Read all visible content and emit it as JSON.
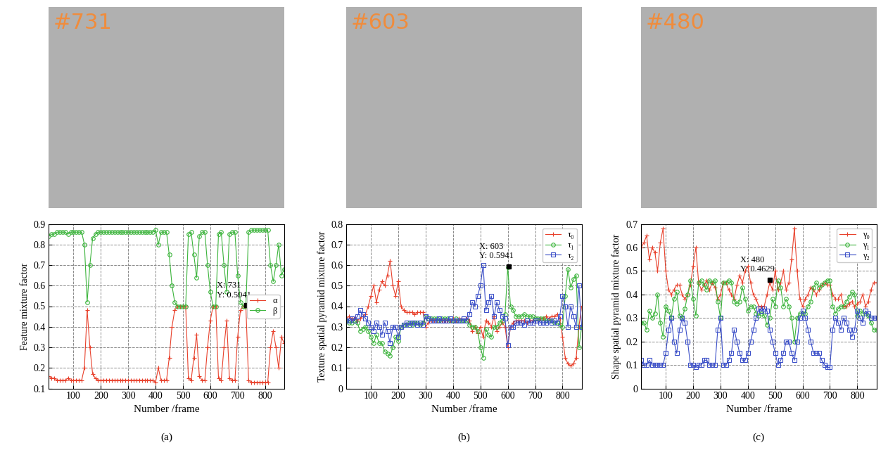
{
  "frames": [
    {
      "label": "#731"
    },
    {
      "label": "#603"
    },
    {
      "label": "#480"
    }
  ],
  "chart_data": [
    {
      "type": "line",
      "x_label": "Number /frame",
      "y_label": "Feature mixture factor",
      "caption": "(a)",
      "xlim": [
        10,
        870
      ],
      "xticks": [
        100,
        200,
        300,
        400,
        500,
        600,
        700,
        800
      ],
      "ylim": [
        0.1,
        0.9
      ],
      "yticks": [
        0.1,
        0.2,
        0.3,
        0.4,
        0.5,
        0.6,
        0.7,
        0.8,
        0.9
      ],
      "grid": true,
      "legend": "center right",
      "annotations": [
        {
          "x": 731,
          "y": 0.5041,
          "text": "X: 731\nY: 0.5041"
        }
      ],
      "x": [
        10,
        20,
        30,
        40,
        50,
        60,
        70,
        80,
        90,
        100,
        110,
        120,
        130,
        140,
        150,
        160,
        170,
        180,
        190,
        200,
        210,
        220,
        230,
        240,
        250,
        260,
        270,
        280,
        290,
        300,
        310,
        320,
        330,
        340,
        350,
        360,
        370,
        380,
        390,
        400,
        410,
        420,
        430,
        440,
        450,
        460,
        470,
        480,
        490,
        500,
        510,
        520,
        530,
        540,
        550,
        560,
        570,
        580,
        590,
        600,
        610,
        620,
        630,
        640,
        650,
        660,
        670,
        680,
        690,
        700,
        710,
        720,
        730,
        740,
        750,
        760,
        770,
        780,
        790,
        800,
        810,
        820,
        830,
        840,
        850,
        860,
        870
      ],
      "series": [
        {
          "name": "α",
          "color": "#e8412c",
          "marker": "plus",
          "line_style": "solid",
          "values": [
            0.16,
            0.15,
            0.15,
            0.14,
            0.14,
            0.14,
            0.14,
            0.15,
            0.14,
            0.14,
            0.14,
            0.14,
            0.14,
            0.2,
            0.48,
            0.3,
            0.17,
            0.15,
            0.14,
            0.14,
            0.14,
            0.14,
            0.14,
            0.14,
            0.14,
            0.14,
            0.14,
            0.14,
            0.14,
            0.14,
            0.14,
            0.14,
            0.14,
            0.14,
            0.14,
            0.14,
            0.14,
            0.14,
            0.14,
            0.13,
            0.2,
            0.14,
            0.14,
            0.14,
            0.25,
            0.4,
            0.48,
            0.5,
            0.5,
            0.5,
            0.5,
            0.15,
            0.14,
            0.25,
            0.36,
            0.16,
            0.14,
            0.14,
            0.3,
            0.43,
            0.5,
            0.5,
            0.15,
            0.14,
            0.3,
            0.43,
            0.15,
            0.14,
            0.14,
            0.35,
            0.48,
            0.5,
            0.5,
            0.14,
            0.13,
            0.13,
            0.13,
            0.13,
            0.13,
            0.13,
            0.13,
            0.3,
            0.38,
            0.3,
            0.2,
            0.35,
            0.32
          ]
        },
        {
          "name": "β",
          "color": "#3cb43c",
          "marker": "circle",
          "line_style": "solid",
          "values": [
            0.84,
            0.85,
            0.85,
            0.86,
            0.86,
            0.86,
            0.86,
            0.85,
            0.86,
            0.86,
            0.86,
            0.86,
            0.86,
            0.8,
            0.52,
            0.7,
            0.83,
            0.85,
            0.86,
            0.86,
            0.86,
            0.86,
            0.86,
            0.86,
            0.86,
            0.86,
            0.86,
            0.86,
            0.86,
            0.86,
            0.86,
            0.86,
            0.86,
            0.86,
            0.86,
            0.86,
            0.86,
            0.86,
            0.86,
            0.87,
            0.8,
            0.86,
            0.86,
            0.86,
            0.75,
            0.6,
            0.52,
            0.5,
            0.5,
            0.5,
            0.5,
            0.85,
            0.86,
            0.75,
            0.64,
            0.84,
            0.86,
            0.86,
            0.7,
            0.57,
            0.5,
            0.5,
            0.85,
            0.86,
            0.7,
            0.57,
            0.85,
            0.86,
            0.86,
            0.65,
            0.52,
            0.5,
            0.5,
            0.86,
            0.87,
            0.87,
            0.87,
            0.87,
            0.87,
            0.87,
            0.87,
            0.7,
            0.62,
            0.7,
            0.8,
            0.65,
            0.68
          ]
        }
      ]
    },
    {
      "type": "line",
      "x_label": "Number /frame",
      "y_label": "Texture spatial pyramid mixture factor",
      "caption": "(b)",
      "xlim": [
        10,
        870
      ],
      "xticks": [
        100,
        200,
        300,
        400,
        500,
        600,
        700,
        800
      ],
      "ylim": [
        0,
        0.8
      ],
      "yticks": [
        0,
        0.1,
        0.2,
        0.3,
        0.4,
        0.5,
        0.6,
        0.7,
        0.8
      ],
      "grid": true,
      "legend": "upper right",
      "annotations": [
        {
          "x": 603,
          "y": 0.5941,
          "text": "X: 603\nY: 0.5941"
        }
      ],
      "x": [
        10,
        20,
        30,
        40,
        50,
        60,
        70,
        80,
        90,
        100,
        110,
        120,
        130,
        140,
        150,
        160,
        170,
        180,
        190,
        200,
        210,
        220,
        230,
        240,
        250,
        260,
        270,
        280,
        290,
        300,
        310,
        320,
        330,
        340,
        350,
        360,
        370,
        380,
        390,
        400,
        410,
        420,
        430,
        440,
        450,
        460,
        470,
        480,
        490,
        500,
        510,
        520,
        530,
        540,
        550,
        560,
        570,
        580,
        590,
        600,
        610,
        620,
        630,
        640,
        650,
        660,
        670,
        680,
        690,
        700,
        710,
        720,
        730,
        740,
        750,
        760,
        770,
        780,
        790,
        800,
        810,
        820,
        830,
        840,
        850,
        860,
        870
      ],
      "series": [
        {
          "name": "τ₀",
          "color": "#e8412c",
          "marker": "plus",
          "line_style": "solid",
          "values": [
            0.34,
            0.35,
            0.34,
            0.34,
            0.33,
            0.34,
            0.35,
            0.36,
            0.4,
            0.45,
            0.5,
            0.42,
            0.48,
            0.52,
            0.5,
            0.55,
            0.62,
            0.5,
            0.45,
            0.52,
            0.4,
            0.38,
            0.37,
            0.37,
            0.37,
            0.36,
            0.37,
            0.37,
            0.37,
            0.3,
            0.32,
            0.33,
            0.33,
            0.33,
            0.33,
            0.33,
            0.33,
            0.33,
            0.33,
            0.34,
            0.33,
            0.34,
            0.34,
            0.33,
            0.34,
            0.33,
            0.28,
            0.3,
            0.27,
            0.3,
            0.25,
            0.33,
            0.32,
            0.3,
            0.35,
            0.28,
            0.3,
            0.32,
            0.3,
            0.2,
            0.3,
            0.32,
            0.33,
            0.33,
            0.33,
            0.33,
            0.32,
            0.33,
            0.33,
            0.33,
            0.33,
            0.34,
            0.34,
            0.35,
            0.34,
            0.35,
            0.35,
            0.36,
            0.34,
            0.25,
            0.15,
            0.12,
            0.11,
            0.12,
            0.15,
            0.3,
            0.4
          ]
        },
        {
          "name": "τ₁",
          "color": "#3cb43c",
          "marker": "circle",
          "line_style": "solid",
          "values": [
            0.33,
            0.32,
            0.32,
            0.33,
            0.32,
            0.28,
            0.29,
            0.3,
            0.28,
            0.25,
            0.22,
            0.26,
            0.22,
            0.22,
            0.18,
            0.17,
            0.16,
            0.2,
            0.25,
            0.23,
            0.3,
            0.31,
            0.31,
            0.32,
            0.31,
            0.32,
            0.32,
            0.31,
            0.32,
            0.35,
            0.34,
            0.34,
            0.34,
            0.34,
            0.33,
            0.34,
            0.34,
            0.34,
            0.33,
            0.33,
            0.34,
            0.33,
            0.33,
            0.33,
            0.33,
            0.31,
            0.3,
            0.3,
            0.28,
            0.2,
            0.15,
            0.29,
            0.26,
            0.25,
            0.3,
            0.3,
            0.32,
            0.33,
            0.36,
            0.59,
            0.4,
            0.38,
            0.35,
            0.35,
            0.35,
            0.36,
            0.35,
            0.35,
            0.35,
            0.34,
            0.34,
            0.34,
            0.34,
            0.33,
            0.33,
            0.33,
            0.32,
            0.32,
            0.31,
            0.3,
            0.45,
            0.58,
            0.49,
            0.53,
            0.55,
            0.2,
            0.3
          ]
        },
        {
          "name": "τ₂",
          "color": "#3c50c8",
          "marker": "square",
          "line_style": "solid",
          "values": [
            0.33,
            0.33,
            0.34,
            0.33,
            0.35,
            0.38,
            0.36,
            0.34,
            0.32,
            0.3,
            0.28,
            0.32,
            0.3,
            0.26,
            0.32,
            0.28,
            0.22,
            0.3,
            0.3,
            0.25,
            0.3,
            0.31,
            0.32,
            0.31,
            0.32,
            0.32,
            0.31,
            0.32,
            0.31,
            0.35,
            0.34,
            0.33,
            0.33,
            0.33,
            0.34,
            0.33,
            0.33,
            0.33,
            0.34,
            0.33,
            0.33,
            0.33,
            0.33,
            0.34,
            0.33,
            0.36,
            0.42,
            0.4,
            0.45,
            0.5,
            0.6,
            0.38,
            0.42,
            0.45,
            0.35,
            0.42,
            0.38,
            0.35,
            0.34,
            0.21,
            0.3,
            0.3,
            0.32,
            0.32,
            0.32,
            0.31,
            0.33,
            0.32,
            0.32,
            0.33,
            0.33,
            0.32,
            0.32,
            0.32,
            0.33,
            0.32,
            0.33,
            0.32,
            0.35,
            0.45,
            0.4,
            0.3,
            0.4,
            0.35,
            0.3,
            0.5,
            0.3
          ]
        }
      ]
    },
    {
      "type": "line",
      "x_label": "Number /frame",
      "y_label": "Shape spatial pyramid mixture factor",
      "caption": "(c)",
      "xlim": [
        10,
        870
      ],
      "xticks": [
        100,
        200,
        300,
        400,
        500,
        600,
        700,
        800
      ],
      "ylim": [
        0,
        0.7
      ],
      "yticks": [
        0,
        0.1,
        0.2,
        0.3,
        0.4,
        0.5,
        0.6,
        0.7
      ],
      "grid": true,
      "legend": "upper right",
      "annotations": [
        {
          "x": 480,
          "y": 0.4629,
          "text": "X: 480\nY: 0.4629"
        }
      ],
      "x": [
        10,
        20,
        30,
        40,
        50,
        60,
        70,
        80,
        90,
        100,
        110,
        120,
        130,
        140,
        150,
        160,
        170,
        180,
        190,
        200,
        210,
        220,
        230,
        240,
        250,
        260,
        270,
        280,
        290,
        300,
        310,
        320,
        330,
        340,
        350,
        360,
        370,
        380,
        390,
        400,
        410,
        420,
        430,
        440,
        450,
        460,
        470,
        480,
        490,
        500,
        510,
        520,
        530,
        540,
        550,
        560,
        570,
        580,
        590,
        600,
        610,
        620,
        630,
        640,
        650,
        660,
        670,
        680,
        690,
        700,
        710,
        720,
        730,
        740,
        750,
        760,
        770,
        780,
        790,
        800,
        810,
        820,
        830,
        840,
        850,
        860,
        870
      ],
      "series": [
        {
          "name": "γ₀",
          "color": "#e8412c",
          "marker": "plus",
          "line_style": "solid",
          "values": [
            0.6,
            0.62,
            0.65,
            0.55,
            0.6,
            0.58,
            0.5,
            0.62,
            0.68,
            0.5,
            0.42,
            0.4,
            0.42,
            0.44,
            0.44,
            0.4,
            0.38,
            0.4,
            0.44,
            0.52,
            0.6,
            0.45,
            0.42,
            0.44,
            0.46,
            0.42,
            0.45,
            0.43,
            0.38,
            0.4,
            0.45,
            0.45,
            0.42,
            0.4,
            0.38,
            0.44,
            0.48,
            0.45,
            0.5,
            0.52,
            0.45,
            0.4,
            0.38,
            0.35,
            0.35,
            0.35,
            0.4,
            0.45,
            0.42,
            0.5,
            0.42,
            0.45,
            0.5,
            0.42,
            0.45,
            0.55,
            0.68,
            0.5,
            0.38,
            0.35,
            0.38,
            0.4,
            0.43,
            0.42,
            0.4,
            0.42,
            0.44,
            0.45,
            0.44,
            0.44,
            0.4,
            0.38,
            0.38,
            0.4,
            0.35,
            0.35,
            0.36,
            0.37,
            0.35,
            0.36,
            0.37,
            0.4,
            0.35,
            0.37,
            0.42,
            0.45,
            0.45
          ]
        },
        {
          "name": "γ₁",
          "color": "#3cb43c",
          "marker": "circle",
          "line_style": "solid",
          "values": [
            0.28,
            0.28,
            0.25,
            0.33,
            0.3,
            0.32,
            0.4,
            0.28,
            0.22,
            0.35,
            0.33,
            0.3,
            0.38,
            0.41,
            0.31,
            0.3,
            0.34,
            0.4,
            0.46,
            0.38,
            0.31,
            0.45,
            0.46,
            0.44,
            0.42,
            0.46,
            0.45,
            0.46,
            0.37,
            0.3,
            0.45,
            0.45,
            0.46,
            0.45,
            0.37,
            0.36,
            0.37,
            0.43,
            0.38,
            0.33,
            0.35,
            0.35,
            0.32,
            0.31,
            0.32,
            0.31,
            0.27,
            0.3,
            0.38,
            0.35,
            0.46,
            0.43,
            0.35,
            0.38,
            0.35,
            0.3,
            0.2,
            0.3,
            0.32,
            0.32,
            0.32,
            0.35,
            0.37,
            0.43,
            0.45,
            0.43,
            0.44,
            0.45,
            0.46,
            0.46,
            0.35,
            0.32,
            0.34,
            0.35,
            0.35,
            0.37,
            0.39,
            0.41,
            0.4,
            0.31,
            0.33,
            0.32,
            0.32,
            0.31,
            0.28,
            0.25,
            0.25
          ]
        },
        {
          "name": "γ₂",
          "color": "#3c50c8",
          "marker": "square",
          "line_style": "solid",
          "values": [
            0.12,
            0.1,
            0.1,
            0.12,
            0.1,
            0.1,
            0.1,
            0.1,
            0.1,
            0.15,
            0.25,
            0.3,
            0.2,
            0.15,
            0.25,
            0.3,
            0.28,
            0.2,
            0.1,
            0.1,
            0.09,
            0.1,
            0.1,
            0.12,
            0.12,
            0.1,
            0.1,
            0.1,
            0.25,
            0.3,
            0.1,
            0.1,
            0.12,
            0.15,
            0.25,
            0.2,
            0.15,
            0.12,
            0.12,
            0.15,
            0.2,
            0.25,
            0.3,
            0.34,
            0.33,
            0.34,
            0.33,
            0.25,
            0.2,
            0.15,
            0.1,
            0.12,
            0.15,
            0.2,
            0.2,
            0.15,
            0.12,
            0.2,
            0.3,
            0.33,
            0.3,
            0.25,
            0.2,
            0.15,
            0.15,
            0.15,
            0.12,
            0.1,
            0.09,
            0.09,
            0.25,
            0.3,
            0.28,
            0.25,
            0.3,
            0.28,
            0.25,
            0.22,
            0.25,
            0.33,
            0.3,
            0.28,
            0.33,
            0.32,
            0.3,
            0.3,
            0.3
          ]
        }
      ]
    }
  ]
}
